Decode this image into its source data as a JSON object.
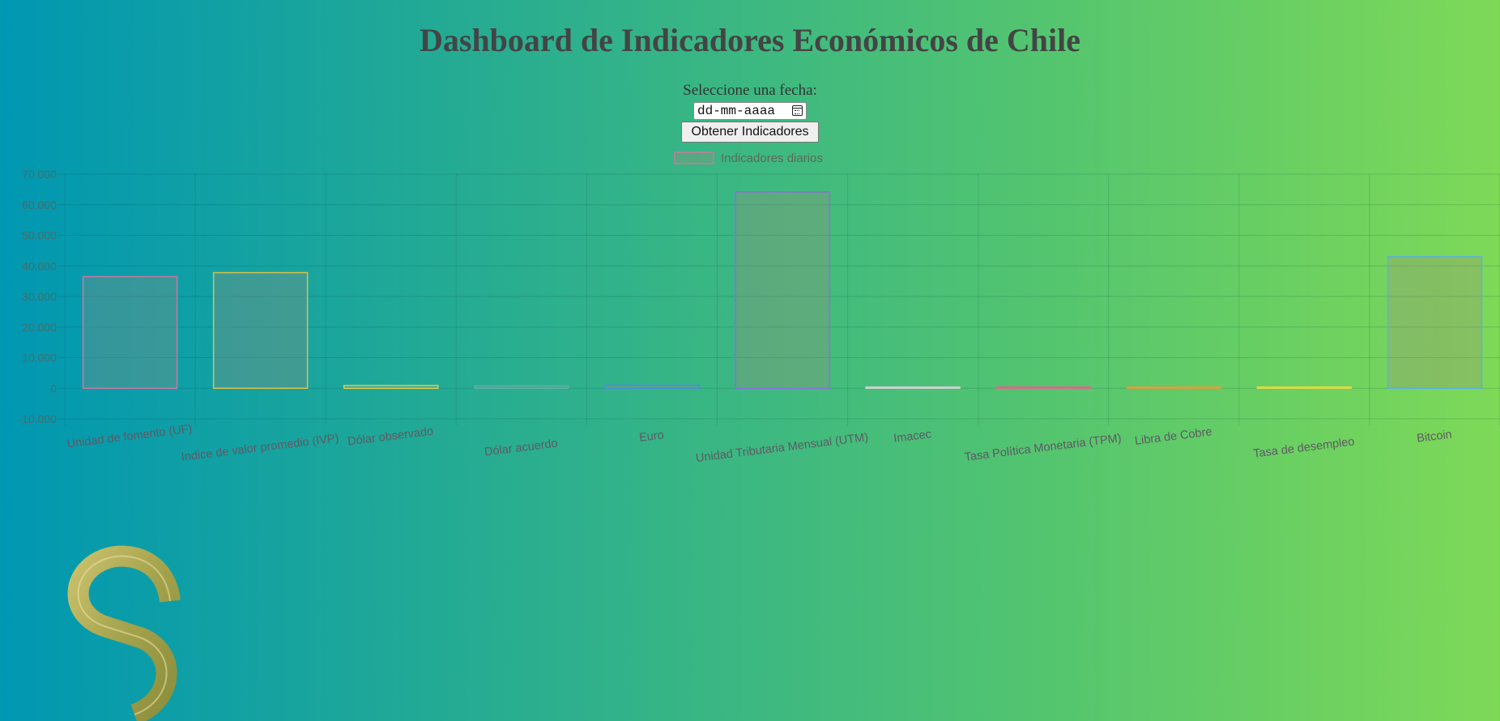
{
  "page": {
    "title": "Dashboard de Indicadores Económicos de Chile",
    "date_label": "Seleccione una fecha:",
    "date_placeholder": "dd-mm-aaaa",
    "button_label": "Obtener Indicadores",
    "decorative_icon": "dollar-sign-icon"
  },
  "chart_data": {
    "type": "bar",
    "title": "",
    "xlabel": "",
    "ylabel": "",
    "ylim": [
      -10000,
      70000
    ],
    "yticks": [
      -10000,
      0,
      10000,
      20000,
      30000,
      40000,
      50000,
      60000,
      70000
    ],
    "ytick_labels": [
      "-10.000",
      "0",
      "10.000",
      "20.000",
      "30.000",
      "40.000",
      "50.000",
      "60.000",
      "70.000"
    ],
    "grid": true,
    "legend": "top-center",
    "categories": [
      "Unidad de fomento (UF)",
      "Indice de valor promedio (IVP)",
      "Dólar observado",
      "Dólar acuerdo",
      "Euro",
      "Unidad Tributaria Mensual (UTM)",
      "Imacec",
      "Tasa Política Monetaria (TPM)",
      "Libra de Cobre",
      "Tasa de desempleo",
      "Bitcoin"
    ],
    "series": [
      {
        "name": "Indicadores diarios",
        "values": [
          36500,
          37800,
          900,
          760,
          1000,
          64200,
          3,
          10,
          4,
          9,
          43000
        ]
      }
    ],
    "bar_colors": [
      "#c77aa0",
      "#d9c14a",
      "#d8d04a",
      "#5ab2a8",
      "#4a8fd9",
      "#8a6fe0",
      "#cfcfcf",
      "#d96a8a",
      "#d9a040",
      "#e0d840",
      "#5ab0e0"
    ],
    "bar_fill": "rgba(160,140,120,0.3)"
  }
}
